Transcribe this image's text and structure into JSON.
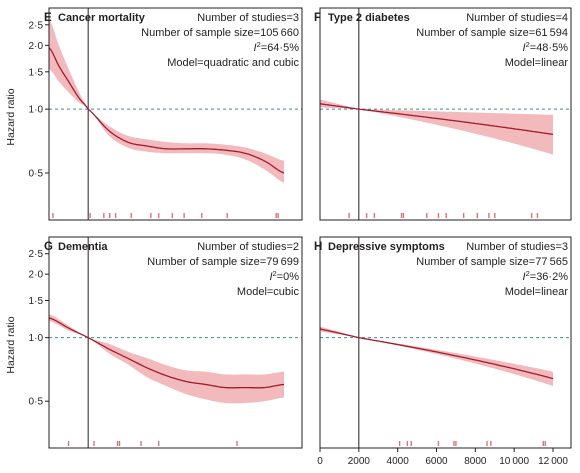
{
  "figure": {
    "y_axis_title": "Hazard ratio",
    "colors": {
      "curve": "#a01c30",
      "band": "#ec9d9f",
      "reference_line": "#3f8f8a",
      "axis": "#231f20"
    }
  },
  "chart_data": [
    {
      "type": "line",
      "panel": "E",
      "title": "Cancer mortality",
      "annotations": [
        "Number of studies=3",
        "Number of sample size=105 660",
        "I²=64·5%",
        "Model=quadratic and cubic"
      ],
      "ylabel": "Hazard ratio",
      "yscale": "log",
      "ylim": [
        0.3,
        3.0
      ],
      "yticks": [
        0.5,
        1.0,
        1.5,
        2.0,
        2.5
      ],
      "ytick_labels": [
        "0·5",
        "1·0",
        "1·5",
        "2·0",
        "2·5"
      ],
      "xlim": [
        0,
        12000
      ],
      "reference_x": 2000,
      "reference_y": 1.0,
      "series": [
        {
          "x": [
            0,
            500,
            1000,
            1500,
            2000,
            3000,
            4000,
            5000,
            6000,
            7000,
            8000,
            9000,
            10000,
            11000,
            12000
          ],
          "y": [
            1.95,
            1.6,
            1.35,
            1.14,
            1.0,
            0.8,
            0.7,
            0.67,
            0.65,
            0.65,
            0.65,
            0.64,
            0.62,
            0.57,
            0.5
          ],
          "lower": [
            1.55,
            1.35,
            1.2,
            1.08,
            1.0,
            0.76,
            0.66,
            0.63,
            0.62,
            0.62,
            0.62,
            0.61,
            0.58,
            0.52,
            0.45
          ],
          "upper": [
            2.65,
            2.0,
            1.55,
            1.22,
            1.0,
            0.84,
            0.75,
            0.72,
            0.7,
            0.69,
            0.69,
            0.68,
            0.66,
            0.62,
            0.57
          ]
        }
      ],
      "rug": [
        200,
        2100,
        2800,
        3100,
        3400,
        4200,
        5200,
        5600,
        6300,
        6900,
        7800,
        9100,
        11600,
        11700
      ],
      "show_x_ticks": false
    },
    {
      "type": "line",
      "panel": "F",
      "title": "Type 2 diabetes",
      "annotations": [
        "Number of studies=4",
        "Number of sample size=61 594",
        "I²=48·5%",
        "Model=linear"
      ],
      "ylabel": "",
      "yscale": "log",
      "ylim": [
        0.3,
        3.0
      ],
      "xlim": [
        0,
        12000
      ],
      "reference_x": 2000,
      "reference_y": 1.0,
      "series": [
        {
          "x": [
            0,
            2000,
            12000
          ],
          "y": [
            1.06,
            1.0,
            0.76
          ],
          "lower": [
            1.02,
            1.0,
            0.61
          ],
          "upper": [
            1.11,
            1.0,
            0.94
          ]
        }
      ],
      "rug": [
        1500,
        2400,
        2800,
        4200,
        4300,
        5500,
        6100,
        6500,
        7400,
        8100,
        8700,
        9000,
        10900,
        11200
      ],
      "show_x_ticks": false
    },
    {
      "type": "line",
      "panel": "G",
      "title": "Dementia",
      "annotations": [
        "Number of studies=2",
        "Number of sample size=79 699",
        "I²=0%",
        "Model=cubic"
      ],
      "ylabel": "Hazard ratio",
      "yscale": "log",
      "ylim": [
        0.3,
        3.0
      ],
      "yticks": [
        0.5,
        1.0,
        1.5,
        2.0,
        2.5
      ],
      "ytick_labels": [
        "0·5",
        "1·0",
        "1·5",
        "2·0",
        "2·5"
      ],
      "xlim": [
        0,
        12000
      ],
      "reference_x": 2000,
      "reference_y": 1.0,
      "series": [
        {
          "x": [
            0,
            1000,
            2000,
            3000,
            4000,
            5000,
            6000,
            7000,
            8000,
            9000,
            10000,
            11000,
            12000
          ],
          "y": [
            1.24,
            1.11,
            1.0,
            0.89,
            0.8,
            0.72,
            0.66,
            0.62,
            0.6,
            0.58,
            0.58,
            0.58,
            0.6
          ],
          "lower": [
            1.2,
            1.08,
            1.0,
            0.85,
            0.75,
            0.65,
            0.59,
            0.54,
            0.51,
            0.49,
            0.49,
            0.5,
            0.52
          ],
          "upper": [
            1.29,
            1.14,
            1.0,
            0.94,
            0.86,
            0.8,
            0.74,
            0.7,
            0.69,
            0.67,
            0.67,
            0.67,
            0.69
          ]
        }
      ],
      "rug": [
        1000,
        2300,
        3500,
        3600,
        4700,
        5600,
        9600
      ],
      "show_x_ticks": false
    },
    {
      "type": "line",
      "panel": "H",
      "title": "Depressive symptoms",
      "annotations": [
        "Number of studies=3",
        "Number of sample size=77 565",
        "I²=36·2%",
        "Model=linear"
      ],
      "ylabel": "",
      "yscale": "log",
      "ylim": [
        0.3,
        3.0
      ],
      "xlim": [
        0,
        12000
      ],
      "reference_x": 2000,
      "reference_y": 1.0,
      "xticks": [
        0,
        2000,
        4000,
        6000,
        8000,
        10000,
        12000
      ],
      "xtick_labels": [
        "0",
        "2000",
        "4000",
        "6000",
        "8000",
        "10 000",
        "12 000"
      ],
      "series": [
        {
          "x": [
            0,
            2000,
            12000
          ],
          "y": [
            1.1,
            1.0,
            0.64
          ],
          "lower": [
            1.07,
            1.0,
            0.59
          ],
          "upper": [
            1.13,
            1.0,
            0.69
          ]
        }
      ],
      "rug": [
        4100,
        4500,
        4700,
        6100,
        6900,
        7000,
        8600,
        8800,
        11500,
        11600
      ],
      "show_x_ticks": true
    }
  ]
}
